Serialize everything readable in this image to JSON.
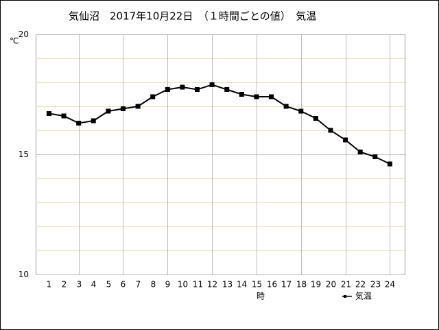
{
  "chart_data": {
    "type": "line",
    "title": "気仙沼　2017年10月22日　（１時間ごとの値）　気温",
    "ylabel": "℃",
    "xlabel": "時",
    "x": [
      1,
      2,
      3,
      4,
      5,
      6,
      7,
      8,
      9,
      10,
      11,
      12,
      13,
      14,
      15,
      16,
      17,
      18,
      19,
      20,
      21,
      22,
      23,
      24
    ],
    "xlim": [
      0.1,
      25
    ],
    "xticks": [
      1,
      2,
      3,
      4,
      5,
      6,
      7,
      8,
      9,
      10,
      11,
      12,
      13,
      14,
      15,
      16,
      17,
      18,
      19,
      20,
      21,
      22,
      23,
      24
    ],
    "ylim": [
      10,
      20
    ],
    "yticks": [
      10,
      15,
      20
    ],
    "yminorticks": [
      11,
      12,
      13,
      14,
      16,
      17,
      18,
      19
    ],
    "grid": true,
    "legend": "bottom-right",
    "series": [
      {
        "name": "気温",
        "color": "#000000",
        "values": [
          16.7,
          16.6,
          16.3,
          16.4,
          16.8,
          16.9,
          17.0,
          17.4,
          17.7,
          17.8,
          17.7,
          17.9,
          17.7,
          17.5,
          17.4,
          17.4,
          17.0,
          16.8,
          16.5,
          16.0,
          15.6,
          15.1,
          14.9,
          14.6
        ]
      }
    ]
  }
}
